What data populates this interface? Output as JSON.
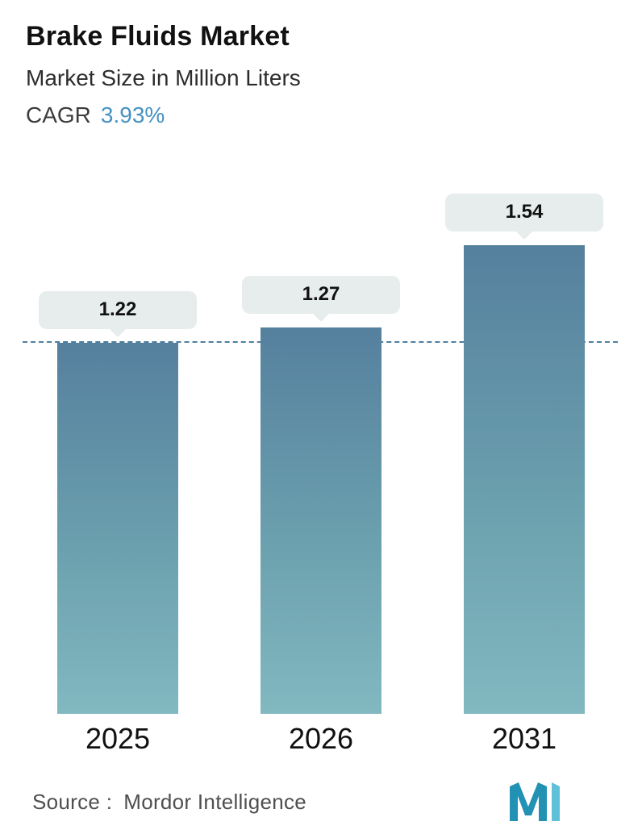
{
  "header": {
    "title": "Brake Fluids Market",
    "subtitle": "Market Size in Million Liters",
    "cagr_label": "CAGR",
    "cagr_value": "3.93%"
  },
  "chart_data": {
    "type": "bar",
    "title": "Brake Fluids Market",
    "subtitle": "Market Size in Million Liters",
    "unit": "Million Liters",
    "cagr": "3.93%",
    "categories": [
      "2025",
      "2026",
      "2031"
    ],
    "values": [
      1.22,
      1.27,
      1.54
    ],
    "value_labels": [
      "1.22",
      "1.27",
      "1.54"
    ],
    "reference_line": {
      "value": 1.22,
      "style": "dashed"
    },
    "ylim": [
      0,
      1.62
    ],
    "grid": false,
    "legend": false,
    "bar_gradient_top": "#55809e",
    "bar_gradient_bottom": "#82b8c0",
    "callout_bg": "#e6edec",
    "dashed_line_color": "#4d7f9f"
  },
  "footer": {
    "source_label": "Source :",
    "source_value": "Mordor Intelligence",
    "logo": "mordor-intelligence-logo"
  },
  "colors": {
    "accent_blue": "#4692c3",
    "text_dark": "#111111",
    "text_gray": "#4f4f4f"
  }
}
